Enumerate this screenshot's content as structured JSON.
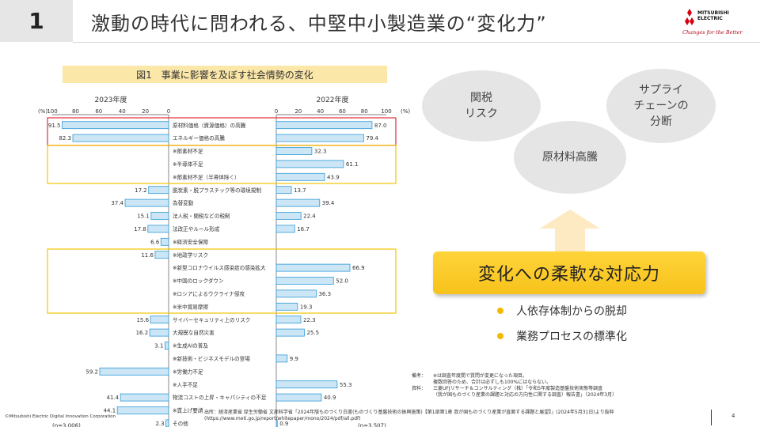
{
  "slide": {
    "number": "1",
    "title": "激動の時代に問われる、中堅中小製造業の“変化力”"
  },
  "brand": {
    "logo_text_line1": "MITSUBISHI",
    "logo_text_line2": "ELECTRIC",
    "tagline": "Changes for the Better",
    "logo_color": "#d7000f"
  },
  "figure": {
    "caption": "図1　事業に影響を及ぼす社会情勢の変化"
  },
  "chart_data": {
    "type": "bar",
    "left_panel": {
      "title": "2023年度",
      "unit_label": "(%)",
      "ticks": [
        "100",
        "80",
        "60",
        "40",
        "20",
        "0"
      ],
      "n_label": "(n=3,006)",
      "xlim": [
        0,
        100
      ]
    },
    "right_panel": {
      "title": "2022年度",
      "ticks": [
        "0",
        "20",
        "40",
        "60",
        "80",
        "100"
      ],
      "unit_label": "(%)",
      "n_label": "(n=3,507)",
      "xlim": [
        0,
        100
      ]
    },
    "categories": [
      "原材料価格（資源価格）の高騰",
      "エネルギー価格の高騰",
      "※部素材不足",
      "※半導体不足",
      "※部素材不足（半導体除く）",
      "脱炭素・脱プラスチック等の環境規制",
      "為替変動",
      "法人税・関税などの税制",
      "法改正やルール形成",
      "※経済安全保障",
      "※地政学リスク",
      "※新型コロナウイルス感染症の感染拡大",
      "※中国のロックダウン",
      "※ロシアによるウクライナ侵攻",
      "※米中貿易摩擦",
      "サイバーセキュリティ上のリスク",
      "大規模な自然災害",
      "※生成AIの普及",
      "※新技術・ビジネスモデルの登場",
      "※労働力不足",
      "※人手不足",
      "物流コストの上昇・キャパシティの不足",
      "※賃上げ要請",
      "その他"
    ],
    "series": [
      {
        "name": "2023年度",
        "values": [
          91.5,
          82.3,
          null,
          null,
          null,
          17.2,
          37.4,
          15.1,
          17.8,
          6.6,
          11.6,
          null,
          null,
          null,
          null,
          15.6,
          16.2,
          3.1,
          null,
          59.2,
          null,
          41.4,
          44.1,
          2.3
        ],
        "labels": [
          "91.5",
          "82.3",
          "",
          "",
          "",
          "17.2",
          "37.4",
          "15.1",
          "17.8",
          "6.6",
          "11.6",
          "",
          "",
          "",
          "",
          "15.6",
          "16.2",
          "3.1",
          "",
          "59.2",
          "",
          "41.4",
          "44.1",
          "2.3"
        ]
      },
      {
        "name": "2022年度",
        "values": [
          87.0,
          79.4,
          32.3,
          61.1,
          43.9,
          13.7,
          39.4,
          22.4,
          16.7,
          null,
          null,
          66.9,
          52.0,
          36.3,
          19.3,
          22.3,
          25.5,
          null,
          9.9,
          null,
          55.3,
          40.9,
          null,
          0.9
        ],
        "labels": [
          "87.0",
          "79.4",
          "32.3",
          "61.1",
          "43.9",
          "13.7",
          "39.4",
          "22.4",
          "16.7",
          "",
          "",
          "66.9",
          "52.0",
          "36.3",
          "19.3",
          "22.3",
          "25.5",
          "",
          "9.9",
          "",
          "55.3",
          "40.9",
          "",
          "0.9"
        ]
      }
    ],
    "colors": {
      "bar_fill": "#cde6f6",
      "bar_stroke": "#2d9ad8",
      "highlight_red": "#e0303c",
      "highlight_yellow": "#f2c400"
    }
  },
  "diagram": {
    "bubble_tariff": "関税\nリスク",
    "bubble_supply": "サプライ\nチェーンの\n分断",
    "bubble_materials": "原材料高騰",
    "arrow_color": "#fde9c2",
    "cta": "変化への柔軟な対応力",
    "cta_color": "#f7c21b",
    "bullets": [
      "人依存体制からの脱却",
      "業務プロセスの標準化"
    ]
  },
  "notes": {
    "remark_label": "備考：",
    "remark_lines": [
      "※は調査年度間で質問が変更になった項目。",
      "複数回答のため、合計は必ずしも100%にはならない。"
    ],
    "source_label": "資料：",
    "source_lines": [
      "三菱UFJリサーチ＆コンサルティング（株）「令和5年度製造基盤技術実態等調査",
      "（我が国ものづくり産業の課題と対応の方向性に関する調査）報告書」（2024年3月）"
    ]
  },
  "footer": {
    "copyright": "©Mitsubishi Electric Digital Innovation Corporation",
    "source_line1": "出所：経済産業省 厚生労働省 文部科学省「2024年版ものづくり白書(ものづくり基盤技術の振興施策)【第1部第1章 我が国ものづくり産業が直面する課題と展望】」(2024年5月31日)より抜粋",
    "source_line2": "(https://www.meti.go.jp/report/whitepaper/mono/2024/pdf/all.pdf)",
    "page_number": "4"
  }
}
